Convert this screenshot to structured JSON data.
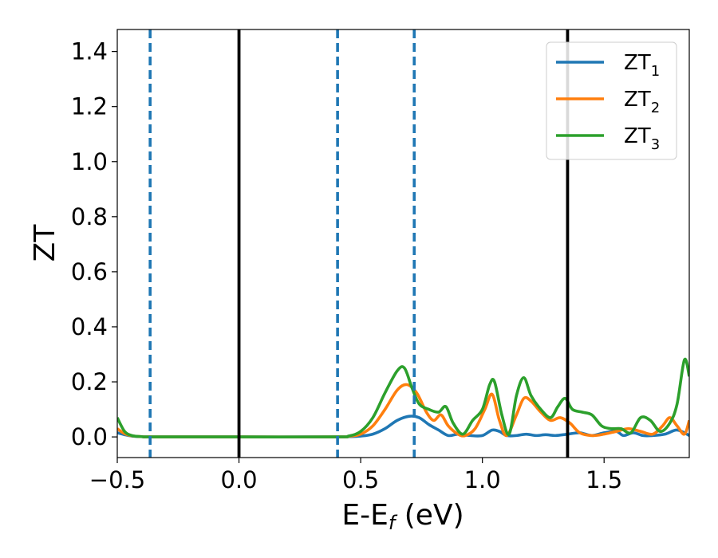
{
  "chart_data": {
    "type": "line",
    "title": "",
    "xlabel": "E-E",
    "xlabel_sub": "f",
    "xlabel_unit": " (eV)",
    "ylabel": "ZT",
    "xlim": [
      -0.5,
      1.85
    ],
    "ylim": [
      -0.075,
      1.48
    ],
    "x_ticks": [
      -0.5,
      0.0,
      0.5,
      1.0,
      1.5
    ],
    "x_tick_labels": [
      "−0.5",
      "0.0",
      "0.5",
      "1.0",
      "1.5"
    ],
    "y_ticks": [
      0.0,
      0.2,
      0.4,
      0.6,
      0.8,
      1.0,
      1.2,
      1.4
    ],
    "y_tick_labels": [
      "0.0",
      "0.2",
      "0.4",
      "0.6",
      "0.8",
      "1.0",
      "1.2",
      "1.4"
    ],
    "grid": false,
    "legend_position": "top-right",
    "vlines": [
      {
        "x": -0.365,
        "color": "#1f77b4",
        "style": "dashed"
      },
      {
        "x": 0.0,
        "color": "#000000",
        "style": "solid"
      },
      {
        "x": 0.405,
        "color": "#1f77b4",
        "style": "dashed"
      },
      {
        "x": 0.72,
        "color": "#1f77b4",
        "style": "dashed"
      },
      {
        "x": 1.35,
        "color": "#000000",
        "style": "solid"
      }
    ],
    "series": [
      {
        "name": "ZT",
        "sub": "1",
        "color": "#1f77b4",
        "x": [
          -0.5,
          -0.47,
          -0.44,
          -0.4,
          -0.35,
          0.0,
          0.4,
          0.45,
          0.5,
          0.55,
          0.6,
          0.65,
          0.7,
          0.74,
          0.78,
          0.82,
          0.86,
          0.9,
          0.95,
          1.0,
          1.04,
          1.07,
          1.1,
          1.14,
          1.18,
          1.22,
          1.26,
          1.3,
          1.35,
          1.4,
          1.45,
          1.5,
          1.55,
          1.58,
          1.62,
          1.66,
          1.7,
          1.75,
          1.8,
          1.85
        ],
        "y": [
          0.015,
          0.008,
          0.003,
          0.001,
          0.0,
          0.0,
          0.0,
          0.001,
          0.003,
          0.01,
          0.03,
          0.06,
          0.075,
          0.07,
          0.045,
          0.025,
          0.005,
          0.01,
          0.005,
          0.005,
          0.025,
          0.02,
          0.005,
          0.005,
          0.01,
          0.005,
          0.008,
          0.005,
          0.01,
          0.015,
          0.005,
          0.015,
          0.02,
          0.005,
          0.015,
          0.005,
          0.005,
          0.01,
          0.025,
          0.005
        ]
      },
      {
        "name": "ZT",
        "sub": "2",
        "color": "#ff7f0e",
        "x": [
          -0.5,
          -0.47,
          -0.44,
          -0.4,
          -0.35,
          0.0,
          0.4,
          0.45,
          0.5,
          0.55,
          0.6,
          0.65,
          0.69,
          0.73,
          0.77,
          0.8,
          0.83,
          0.86,
          0.9,
          0.93,
          0.97,
          1.01,
          1.04,
          1.07,
          1.1,
          1.14,
          1.17,
          1.2,
          1.24,
          1.28,
          1.32,
          1.36,
          1.4,
          1.45,
          1.5,
          1.55,
          1.6,
          1.65,
          1.7,
          1.74,
          1.77,
          1.8,
          1.83,
          1.85
        ],
        "y": [
          0.03,
          0.012,
          0.004,
          0.001,
          0.0,
          0.0,
          0.0,
          0.002,
          0.01,
          0.04,
          0.1,
          0.17,
          0.19,
          0.16,
          0.09,
          0.06,
          0.08,
          0.04,
          0.01,
          0.005,
          0.03,
          0.1,
          0.155,
          0.06,
          0.005,
          0.08,
          0.14,
          0.13,
          0.09,
          0.06,
          0.07,
          0.05,
          0.015,
          0.005,
          0.01,
          0.02,
          0.03,
          0.02,
          0.01,
          0.04,
          0.07,
          0.04,
          0.01,
          0.06
        ]
      },
      {
        "name": "ZT",
        "sub": "3",
        "color": "#2ca02c",
        "x": [
          -0.5,
          -0.47,
          -0.44,
          -0.4,
          -0.35,
          0.0,
          0.4,
          0.45,
          0.5,
          0.55,
          0.6,
          0.65,
          0.68,
          0.71,
          0.74,
          0.78,
          0.82,
          0.85,
          0.88,
          0.92,
          0.96,
          1.0,
          1.03,
          1.05,
          1.08,
          1.11,
          1.14,
          1.17,
          1.2,
          1.24,
          1.28,
          1.31,
          1.34,
          1.37,
          1.41,
          1.45,
          1.49,
          1.53,
          1.57,
          1.61,
          1.65,
          1.69,
          1.73,
          1.77,
          1.8,
          1.83,
          1.85
        ],
        "y": [
          0.07,
          0.02,
          0.005,
          0.001,
          0.0,
          0.0,
          0.0,
          0.003,
          0.02,
          0.07,
          0.16,
          0.24,
          0.25,
          0.18,
          0.12,
          0.1,
          0.09,
          0.11,
          0.05,
          0.01,
          0.06,
          0.1,
          0.19,
          0.2,
          0.08,
          0.01,
          0.15,
          0.215,
          0.15,
          0.1,
          0.07,
          0.11,
          0.14,
          0.1,
          0.09,
          0.08,
          0.04,
          0.03,
          0.03,
          0.015,
          0.07,
          0.06,
          0.02,
          0.05,
          0.12,
          0.28,
          0.22
        ]
      }
    ]
  }
}
